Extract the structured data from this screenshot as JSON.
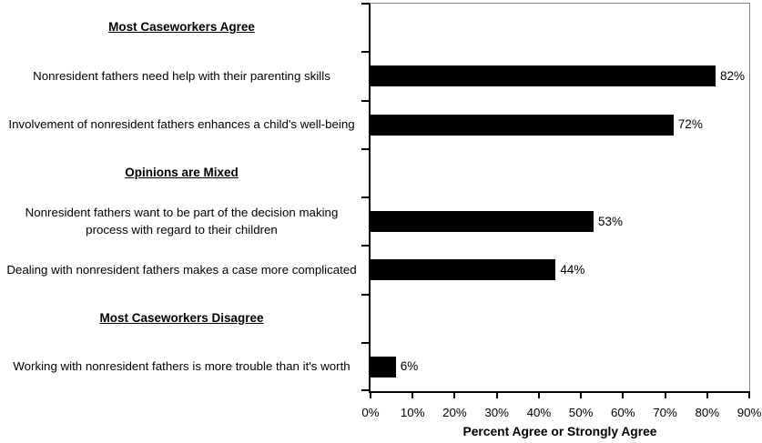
{
  "chart_data": {
    "type": "bar",
    "orientation": "horizontal",
    "title": "",
    "xlabel": "Percent Agree or Strongly Agree",
    "ylabel": "",
    "xlim": [
      0,
      90
    ],
    "x_tick_labels": [
      "0%",
      "10%",
      "20%",
      "30%",
      "40%",
      "50%",
      "60%",
      "70%",
      "80%",
      "90%"
    ],
    "grid": "off",
    "legend": "none",
    "rows": [
      {
        "kind": "section_header",
        "text": "Most Caseworkers Agree"
      },
      {
        "kind": "bar",
        "category": "Nonresident fathers need help with their parenting skills",
        "value": 82,
        "value_label": "82%"
      },
      {
        "kind": "bar",
        "category": "Involvement of nonresident fathers enhances a child's well-being",
        "value": 72,
        "value_label": "72%"
      },
      {
        "kind": "section_header",
        "text": "Opinions are Mixed"
      },
      {
        "kind": "bar",
        "category": "Nonresident fathers want to be part of the decision making process with regard to their children",
        "value": 53,
        "value_label": "53%"
      },
      {
        "kind": "bar",
        "category": "Dealing with nonresident fathers makes a case more complicated",
        "value": 44,
        "value_label": "44%"
      },
      {
        "kind": "section_header",
        "text": "Most Caseworkers Disagree"
      },
      {
        "kind": "bar",
        "category": "Working with nonresident fathers is more trouble than it's worth",
        "value": 6,
        "value_label": "6%"
      }
    ],
    "colors": {
      "bar": "#000000",
      "axis": "#000000",
      "plot_border": "#808080",
      "background": "#ffffff",
      "text": "#000000"
    }
  }
}
